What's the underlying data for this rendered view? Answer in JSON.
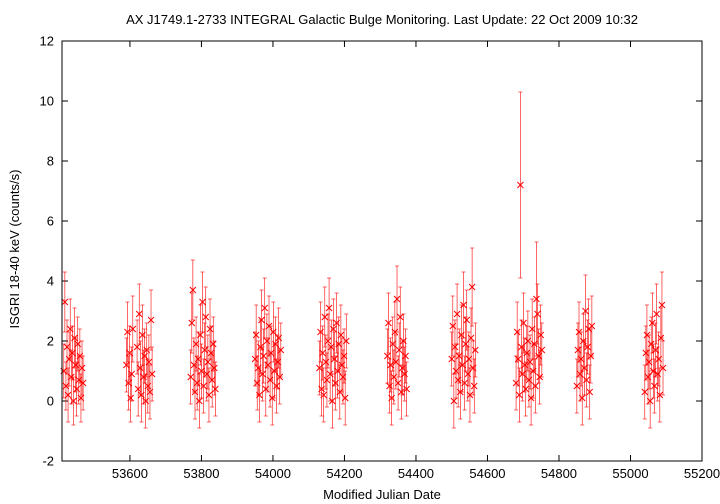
{
  "chart_data": {
    "type": "scatter",
    "title": "AX J1749.1-2733   INTEGRAL Galactic Bulge Monitoring.  Last Update: 22 Oct 2009 10:32",
    "xlabel": "Modified Julian Date",
    "ylabel": "ISGRI 18-40 keV (counts/s)",
    "xlim": [
      53410,
      55200
    ],
    "ylim": [
      -2,
      12
    ],
    "x_ticks": [
      53600,
      53800,
      54000,
      54200,
      54400,
      54600,
      54800,
      55000,
      55200
    ],
    "y_ticks": [
      -2,
      0,
      2,
      4,
      6,
      8,
      10,
      12
    ],
    "grid": false,
    "legend": "none",
    "marker": "x",
    "color": "#ff0000",
    "series": [
      {
        "points": [
          [
            53415,
            1.0,
            0.9
          ],
          [
            53418,
            3.3,
            1.0
          ],
          [
            53421,
            0.5,
            0.8
          ],
          [
            53424,
            1.8,
            0.9
          ],
          [
            53427,
            0.2,
            0.9
          ],
          [
            53430,
            1.4,
            0.9
          ],
          [
            53433,
            2.4,
            1.0
          ],
          [
            53436,
            0.8,
            0.9
          ],
          [
            53439,
            1.6,
            0.9
          ],
          [
            53442,
            0.0,
            0.8
          ],
          [
            53445,
            2.1,
            1.0
          ],
          [
            53448,
            1.2,
            0.9
          ],
          [
            53451,
            0.4,
            0.9
          ],
          [
            53454,
            1.9,
            0.9
          ],
          [
            53457,
            0.7,
            0.8
          ],
          [
            53460,
            1.5,
            0.9
          ],
          [
            53463,
            0.1,
            0.8
          ],
          [
            53466,
            1.1,
            0.9
          ],
          [
            53469,
            0.6,
            0.9
          ],
          [
            53590,
            1.2,
            0.9
          ],
          [
            53593,
            2.3,
            1.0
          ],
          [
            53596,
            0.6,
            0.9
          ],
          [
            53599,
            1.6,
            0.9
          ],
          [
            53602,
            0.1,
            0.8
          ],
          [
            53605,
            0.9,
            0.9
          ],
          [
            53608,
            2.4,
            1.1
          ],
          [
            53620,
            1.8,
            0.9
          ],
          [
            53623,
            0.4,
            0.9
          ],
          [
            53626,
            2.9,
            1.0
          ],
          [
            53629,
            1.1,
            0.9
          ],
          [
            53632,
            0.2,
            0.9
          ],
          [
            53635,
            2.2,
            1.0
          ],
          [
            53638,
            0.8,
            0.9
          ],
          [
            53641,
            1.5,
            0.9
          ],
          [
            53644,
            0.0,
            0.9
          ],
          [
            53647,
            1.7,
            0.9
          ],
          [
            53650,
            0.5,
            0.9
          ],
          [
            53653,
            1.3,
            0.9
          ],
          [
            53656,
            0.3,
            0.9
          ],
          [
            53659,
            2.7,
            1.0
          ],
          [
            53662,
            0.9,
            0.9
          ],
          [
            53770,
            0.8,
            0.9
          ],
          [
            53773,
            2.6,
            1.0
          ],
          [
            53776,
            3.7,
            1.0
          ],
          [
            53779,
            1.2,
            0.9
          ],
          [
            53782,
            0.3,
            0.9
          ],
          [
            53785,
            1.9,
            0.9
          ],
          [
            53788,
            0.6,
            0.9
          ],
          [
            53791,
            1.4,
            0.9
          ],
          [
            53794,
            0.0,
            0.9
          ],
          [
            53797,
            2.2,
            1.0
          ],
          [
            53800,
            1.0,
            0.9
          ],
          [
            53803,
            3.3,
            1.0
          ],
          [
            53806,
            0.5,
            0.9
          ],
          [
            53809,
            1.7,
            0.9
          ],
          [
            53812,
            2.8,
            1.0
          ],
          [
            53815,
            0.9,
            0.9
          ],
          [
            53818,
            1.3,
            0.9
          ],
          [
            53821,
            0.2,
            0.9
          ],
          [
            53824,
            2.4,
            1.0
          ],
          [
            53827,
            1.6,
            0.9
          ],
          [
            53830,
            0.7,
            0.9
          ],
          [
            53833,
            1.9,
            0.9
          ],
          [
            53836,
            1.1,
            0.9
          ],
          [
            53839,
            0.4,
            0.9
          ],
          [
            53950,
            1.4,
            0.9
          ],
          [
            53953,
            2.2,
            1.0
          ],
          [
            53956,
            0.6,
            0.9
          ],
          [
            53959,
            1.1,
            0.9
          ],
          [
            53962,
            0.2,
            0.9
          ],
          [
            53965,
            1.8,
            0.9
          ],
          [
            53968,
            2.7,
            1.0
          ],
          [
            53971,
            0.9,
            0.9
          ],
          [
            53974,
            1.5,
            0.9
          ],
          [
            53977,
            3.1,
            1.0
          ],
          [
            53980,
            0.4,
            0.9
          ],
          [
            53983,
            2.0,
            0.9
          ],
          [
            53986,
            1.2,
            0.9
          ],
          [
            53989,
            2.5,
            1.0
          ],
          [
            53992,
            0.7,
            0.9
          ],
          [
            53995,
            1.6,
            0.9
          ],
          [
            53998,
            0.1,
            0.9
          ],
          [
            54001,
            2.3,
            1.0
          ],
          [
            54004,
            1.0,
            0.9
          ],
          [
            54007,
            1.9,
            0.9
          ],
          [
            54010,
            0.5,
            0.9
          ],
          [
            54013,
            1.3,
            0.9
          ],
          [
            54016,
            2.1,
            1.0
          ],
          [
            54019,
            0.8,
            0.9
          ],
          [
            54022,
            1.7,
            0.9
          ],
          [
            54130,
            1.1,
            0.9
          ],
          [
            54133,
            2.3,
            1.0
          ],
          [
            54136,
            0.4,
            0.9
          ],
          [
            54139,
            1.6,
            0.9
          ],
          [
            54142,
            0.2,
            0.9
          ],
          [
            54145,
            2.8,
            1.0
          ],
          [
            54148,
            1.3,
            0.9
          ],
          [
            54151,
            0.7,
            0.9
          ],
          [
            54154,
            2.0,
            0.9
          ],
          [
            54157,
            3.1,
            1.0
          ],
          [
            54160,
            0.9,
            0.9
          ],
          [
            54163,
            1.8,
            0.9
          ],
          [
            54166,
            0.0,
            0.9
          ],
          [
            54169,
            2.4,
            1.0
          ],
          [
            54172,
            1.4,
            0.9
          ],
          [
            54175,
            0.6,
            0.9
          ],
          [
            54178,
            2.6,
            1.0
          ],
          [
            54181,
            1.0,
            0.9
          ],
          [
            54184,
            1.9,
            0.9
          ],
          [
            54187,
            0.3,
            0.9
          ],
          [
            54190,
            2.2,
            1.0
          ],
          [
            54193,
            1.2,
            0.9
          ],
          [
            54196,
            0.8,
            0.9
          ],
          [
            54199,
            1.5,
            0.9
          ],
          [
            54202,
            0.1,
            0.9
          ],
          [
            54205,
            2.0,
            0.9
          ],
          [
            54320,
            1.5,
            0.9
          ],
          [
            54323,
            2.6,
            1.0
          ],
          [
            54326,
            0.5,
            0.9
          ],
          [
            54329,
            1.2,
            0.9
          ],
          [
            54332,
            0.1,
            0.9
          ],
          [
            54335,
            1.9,
            0.9
          ],
          [
            54338,
            0.8,
            0.9
          ],
          [
            54341,
            2.3,
            1.0
          ],
          [
            54344,
            1.3,
            0.9
          ],
          [
            54347,
            3.4,
            1.1
          ],
          [
            54350,
            0.6,
            0.9
          ],
          [
            54353,
            1.7,
            0.9
          ],
          [
            54356,
            2.8,
            1.0
          ],
          [
            54359,
            0.3,
            0.9
          ],
          [
            54362,
            1.1,
            0.9
          ],
          [
            54365,
            2.0,
            0.9
          ],
          [
            54368,
            0.9,
            0.9
          ],
          [
            54371,
            1.5,
            0.9
          ],
          [
            54374,
            0.4,
            0.9
          ],
          [
            54500,
            1.4,
            0.9
          ],
          [
            54503,
            2.5,
            1.0
          ],
          [
            54506,
            0.0,
            0.9
          ],
          [
            54509,
            1.8,
            0.9
          ],
          [
            54512,
            1.0,
            0.9
          ],
          [
            54515,
            2.9,
            1.0
          ],
          [
            54518,
            0.7,
            0.9
          ],
          [
            54521,
            1.5,
            0.9
          ],
          [
            54524,
            0.3,
            0.9
          ],
          [
            54527,
            2.2,
            1.0
          ],
          [
            54530,
            1.2,
            0.9
          ],
          [
            54533,
            3.2,
            1.1
          ],
          [
            54536,
            0.6,
            0.9
          ],
          [
            54539,
            1.9,
            0.9
          ],
          [
            54542,
            2.7,
            1.0
          ],
          [
            54545,
            0.9,
            0.9
          ],
          [
            54548,
            1.4,
            0.9
          ],
          [
            54551,
            0.2,
            0.9
          ],
          [
            54554,
            2.1,
            1.0
          ],
          [
            54557,
            3.8,
            1.3
          ],
          [
            54560,
            1.1,
            0.9
          ],
          [
            54563,
            0.5,
            0.9
          ],
          [
            54566,
            1.7,
            0.9
          ],
          [
            54680,
            0.6,
            0.9
          ],
          [
            54683,
            2.3,
            1.0
          ],
          [
            54686,
            1.4,
            0.9
          ],
          [
            54689,
            0.2,
            0.9
          ],
          [
            54692,
            7.2,
            3.1
          ],
          [
            54695,
            1.8,
            0.9
          ],
          [
            54698,
            0.9,
            0.9
          ],
          [
            54701,
            2.6,
            1.0
          ],
          [
            54704,
            1.2,
            0.9
          ],
          [
            54707,
            0.4,
            0.9
          ],
          [
            54710,
            1.6,
            0.9
          ],
          [
            54713,
            2.0,
            1.0
          ],
          [
            54716,
            0.7,
            0.9
          ],
          [
            54719,
            1.3,
            0.9
          ],
          [
            54722,
            0.1,
            0.9
          ],
          [
            54725,
            2.4,
            1.0
          ],
          [
            54728,
            1.0,
            0.9
          ],
          [
            54731,
            1.9,
            0.9
          ],
          [
            54734,
            0.5,
            0.9
          ],
          [
            54737,
            3.4,
            1.9
          ],
          [
            54740,
            2.9,
            1.0
          ],
          [
            54743,
            1.5,
            0.9
          ],
          [
            54746,
            0.8,
            0.9
          ],
          [
            54749,
            2.2,
            1.0
          ],
          [
            54752,
            1.7,
            0.9
          ],
          [
            54850,
            0.5,
            0.9
          ],
          [
            54853,
            1.7,
            0.9
          ],
          [
            54856,
            2.3,
            1.0
          ],
          [
            54859,
            0.9,
            0.9
          ],
          [
            54862,
            1.4,
            0.9
          ],
          [
            54865,
            0.1,
            0.9
          ],
          [
            54868,
            2.0,
            0.9
          ],
          [
            54871,
            1.1,
            0.9
          ],
          [
            54874,
            3.0,
            1.2
          ],
          [
            54877,
            0.7,
            0.9
          ],
          [
            54880,
            1.8,
            0.9
          ],
          [
            54883,
            2.4,
            1.0
          ],
          [
            54886,
            0.3,
            0.9
          ],
          [
            54889,
            1.5,
            0.9
          ],
          [
            54892,
            2.5,
            1.0
          ],
          [
            55040,
            0.3,
            0.9
          ],
          [
            55043,
            1.6,
            0.9
          ],
          [
            55046,
            2.2,
            1.0
          ],
          [
            55049,
            0.8,
            0.9
          ],
          [
            55052,
            1.3,
            0.9
          ],
          [
            55055,
            0.0,
            0.9
          ],
          [
            55058,
            1.9,
            0.9
          ],
          [
            55061,
            2.6,
            1.0
          ],
          [
            55064,
            1.0,
            0.9
          ],
          [
            55067,
            0.5,
            0.9
          ],
          [
            55070,
            1.7,
            0.9
          ],
          [
            55073,
            2.9,
            1.0
          ],
          [
            55076,
            0.9,
            0.9
          ],
          [
            55079,
            1.4,
            0.9
          ],
          [
            55082,
            0.2,
            0.9
          ],
          [
            55085,
            2.1,
            1.0
          ],
          [
            55088,
            3.2,
            1.1
          ],
          [
            55091,
            1.1,
            0.9
          ]
        ]
      }
    ]
  }
}
